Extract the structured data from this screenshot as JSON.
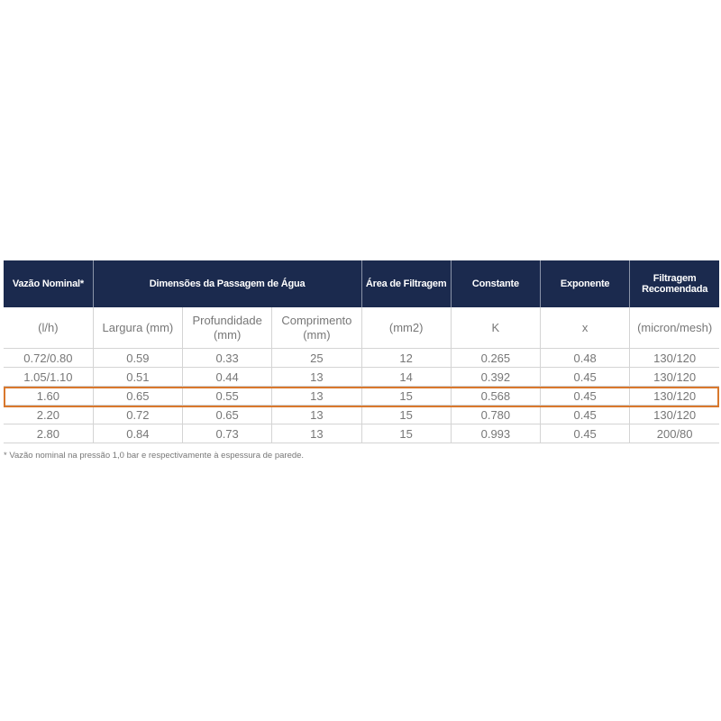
{
  "table": {
    "headers": [
      "Vazão Nominal*",
      "Dimensões da Passagem de Água",
      "Área de Filtragem",
      "Constante",
      "Exponente",
      "Filtragem Recomendada"
    ],
    "subheaders": [
      "(l/h)",
      "Largura (mm)",
      "Profundidade (mm)",
      "Comprimento (mm)",
      "(mm2)",
      "K",
      "x",
      "(micron/mesh)"
    ],
    "rows": [
      [
        "0.72/0.80",
        "0.59",
        "0.33",
        "25",
        "12",
        "0.265",
        "0.48",
        "130/120"
      ],
      [
        "1.05/1.10",
        "0.51",
        "0.44",
        "13",
        "14",
        "0.392",
        "0.45",
        "130/120"
      ],
      [
        "1.60",
        "0.65",
        "0.55",
        "13",
        "15",
        "0.568",
        "0.45",
        "130/120"
      ],
      [
        "2.20",
        "0.72",
        "0.65",
        "13",
        "15",
        "0.780",
        "0.45",
        "130/120"
      ],
      [
        "2.80",
        "0.84",
        "0.73",
        "13",
        "15",
        "0.993",
        "0.45",
        "200/80"
      ]
    ],
    "highlighted_row": 2
  },
  "footnote": "* Vazão nominal na pressão 1,0 bar e respectivamente à espessura de parede.",
  "colors": {
    "header_bg": "#1b2a4e",
    "highlight": "#d9782d",
    "text": "#777777"
  }
}
